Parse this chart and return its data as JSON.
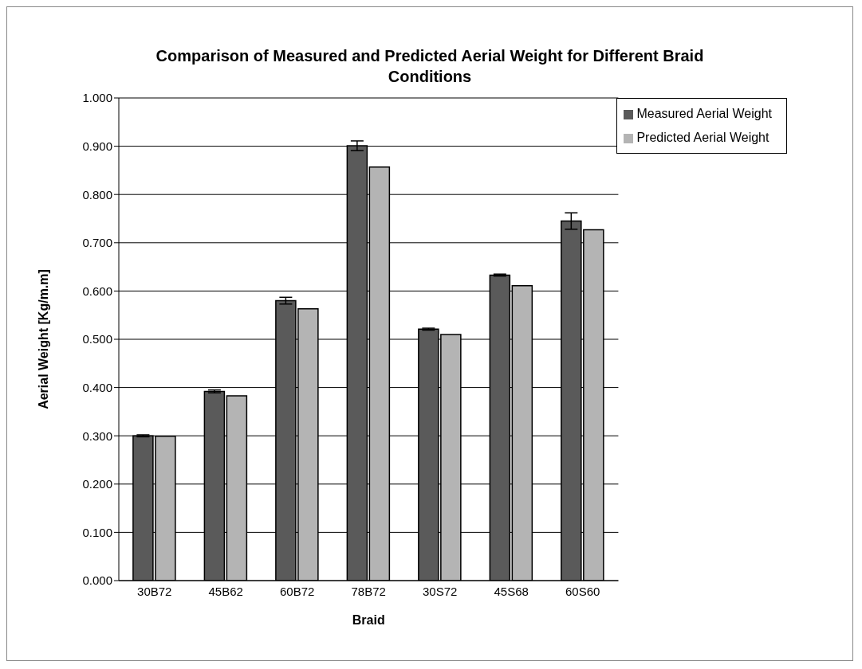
{
  "chart_data": {
    "type": "bar",
    "title": "Comparison of Measured and Predicted Aerial Weight for Different Braid Conditions",
    "xlabel": "Braid",
    "ylabel": "Aerial Weight [Kg/m.m]",
    "categories": [
      "30B72",
      "45B62",
      "60B72",
      "78B72",
      "30S72",
      "45S68",
      "60S60"
    ],
    "series": [
      {
        "name": "Measured Aerial Weight",
        "color": "#5a5a5a",
        "values": [
          0.3,
          0.392,
          0.58,
          0.901,
          0.521,
          0.633,
          0.745
        ],
        "errors": [
          0.002,
          0.003,
          0.007,
          0.01,
          0.002,
          0.002,
          0.017
        ]
      },
      {
        "name": "Predicted Aerial Weight",
        "color": "#b4b4b4",
        "values": [
          0.299,
          0.383,
          0.563,
          0.857,
          0.51,
          0.611,
          0.727
        ]
      }
    ],
    "ylim": [
      0,
      1
    ],
    "yticks": [
      {
        "value": 0,
        "label": "0.000"
      },
      {
        "value": 0.1,
        "label": "0.100"
      },
      {
        "value": 0.2,
        "label": "0.200"
      },
      {
        "value": 0.3,
        "label": "0.300"
      },
      {
        "value": 0.4,
        "label": "0.400"
      },
      {
        "value": 0.5,
        "label": "0.500"
      },
      {
        "value": 0.6,
        "label": "0.600"
      },
      {
        "value": 0.7,
        "label": "0.700"
      },
      {
        "value": 0.8,
        "label": "0.800"
      },
      {
        "value": 0.9,
        "label": "0.900"
      },
      {
        "value": 1,
        "label": "1.000"
      }
    ],
    "grid": "y",
    "legend": "top right"
  }
}
